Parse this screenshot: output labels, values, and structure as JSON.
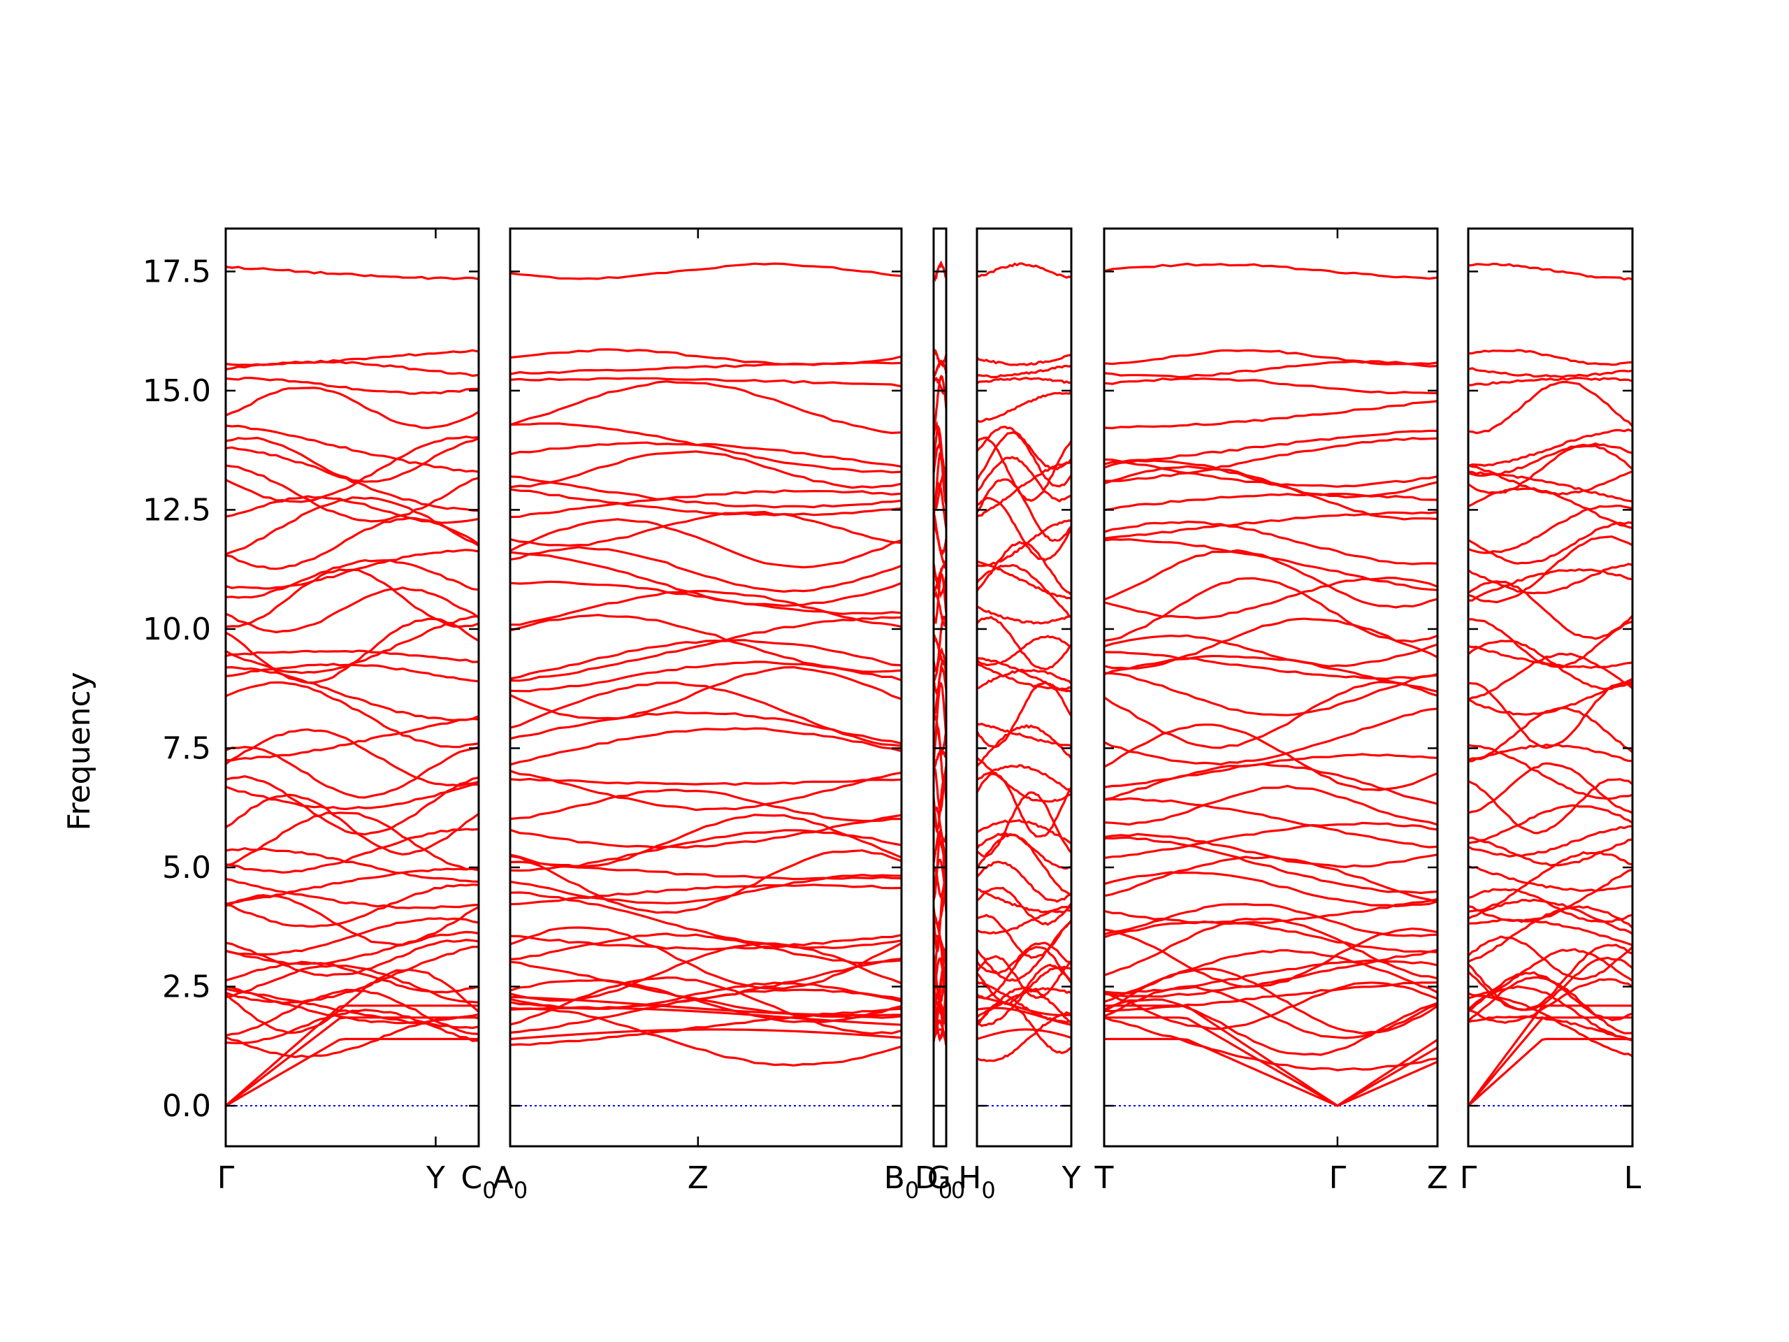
{
  "chart_data": {
    "type": "line",
    "title": "",
    "xlabel": "",
    "ylabel": "Frequency",
    "ylim": [
      -0.85,
      18.4
    ],
    "yticks": [
      "0.0",
      "2.5",
      "5.0",
      "7.5",
      "10.0",
      "12.5",
      "15.0",
      "17.5"
    ],
    "grid": false,
    "band_color": "#ff0000",
    "zero_line_color": "#0000ff",
    "panels": [
      {
        "id": "p1",
        "labels": [
          {
            "text": "Γ",
            "pos": 0
          },
          {
            "text": "Y",
            "pos": 0.83
          },
          {
            "text": "C",
            "sub": "0",
            "pos": 1
          }
        ],
        "left_note": "",
        "right_extra": ""
      },
      {
        "id": "p2",
        "labels": [
          {
            "text": "A",
            "sub": "0",
            "pos": 0
          },
          {
            "text": "Z",
            "pos": 0.48
          },
          {
            "text": "B",
            "sub": "0",
            "pos": 1
          }
        ]
      },
      {
        "id": "p3",
        "labels": [
          {
            "text": "D",
            "sub": "0",
            "pos": 0
          },
          {
            "text": "G",
            "sub": "0",
            "pos": 1
          }
        ]
      },
      {
        "id": "p4",
        "labels": [
          {
            "text": "H",
            "sub": "0",
            "pos": 0
          },
          {
            "text": "Y",
            "pos": 1
          }
        ]
      },
      {
        "id": "p5",
        "labels": [
          {
            "text": "T",
            "pos": 0
          },
          {
            "text": "Γ",
            "pos": 0.7
          },
          {
            "text": "Z",
            "pos": 1
          }
        ]
      },
      {
        "id": "p6",
        "labels": [
          {
            "text": "Γ",
            "pos": 0
          },
          {
            "text": "L",
            "pos": 1
          }
        ]
      }
    ],
    "bands_at_gamma": [
      0,
      0,
      0,
      1.45,
      1.65,
      1.95,
      2.1,
      2.2,
      2.3,
      2.55,
      2.7,
      2.8,
      3.1,
      3.3,
      3.55,
      3.9,
      4.2,
      4.55,
      4.7,
      5.05,
      5.35,
      5.55,
      5.9,
      6.3,
      6.65,
      7.0,
      7.3,
      7.8,
      8.2,
      8.65,
      9.0,
      9.25,
      9.55,
      9.7,
      10.4,
      10.65,
      11.05,
      11.25,
      11.8,
      12.1,
      12.5,
      12.85,
      13.15,
      13.35,
      13.55,
      13.8,
      14.65,
      15.1,
      15.45,
      15.7,
      17.5
    ]
  }
}
